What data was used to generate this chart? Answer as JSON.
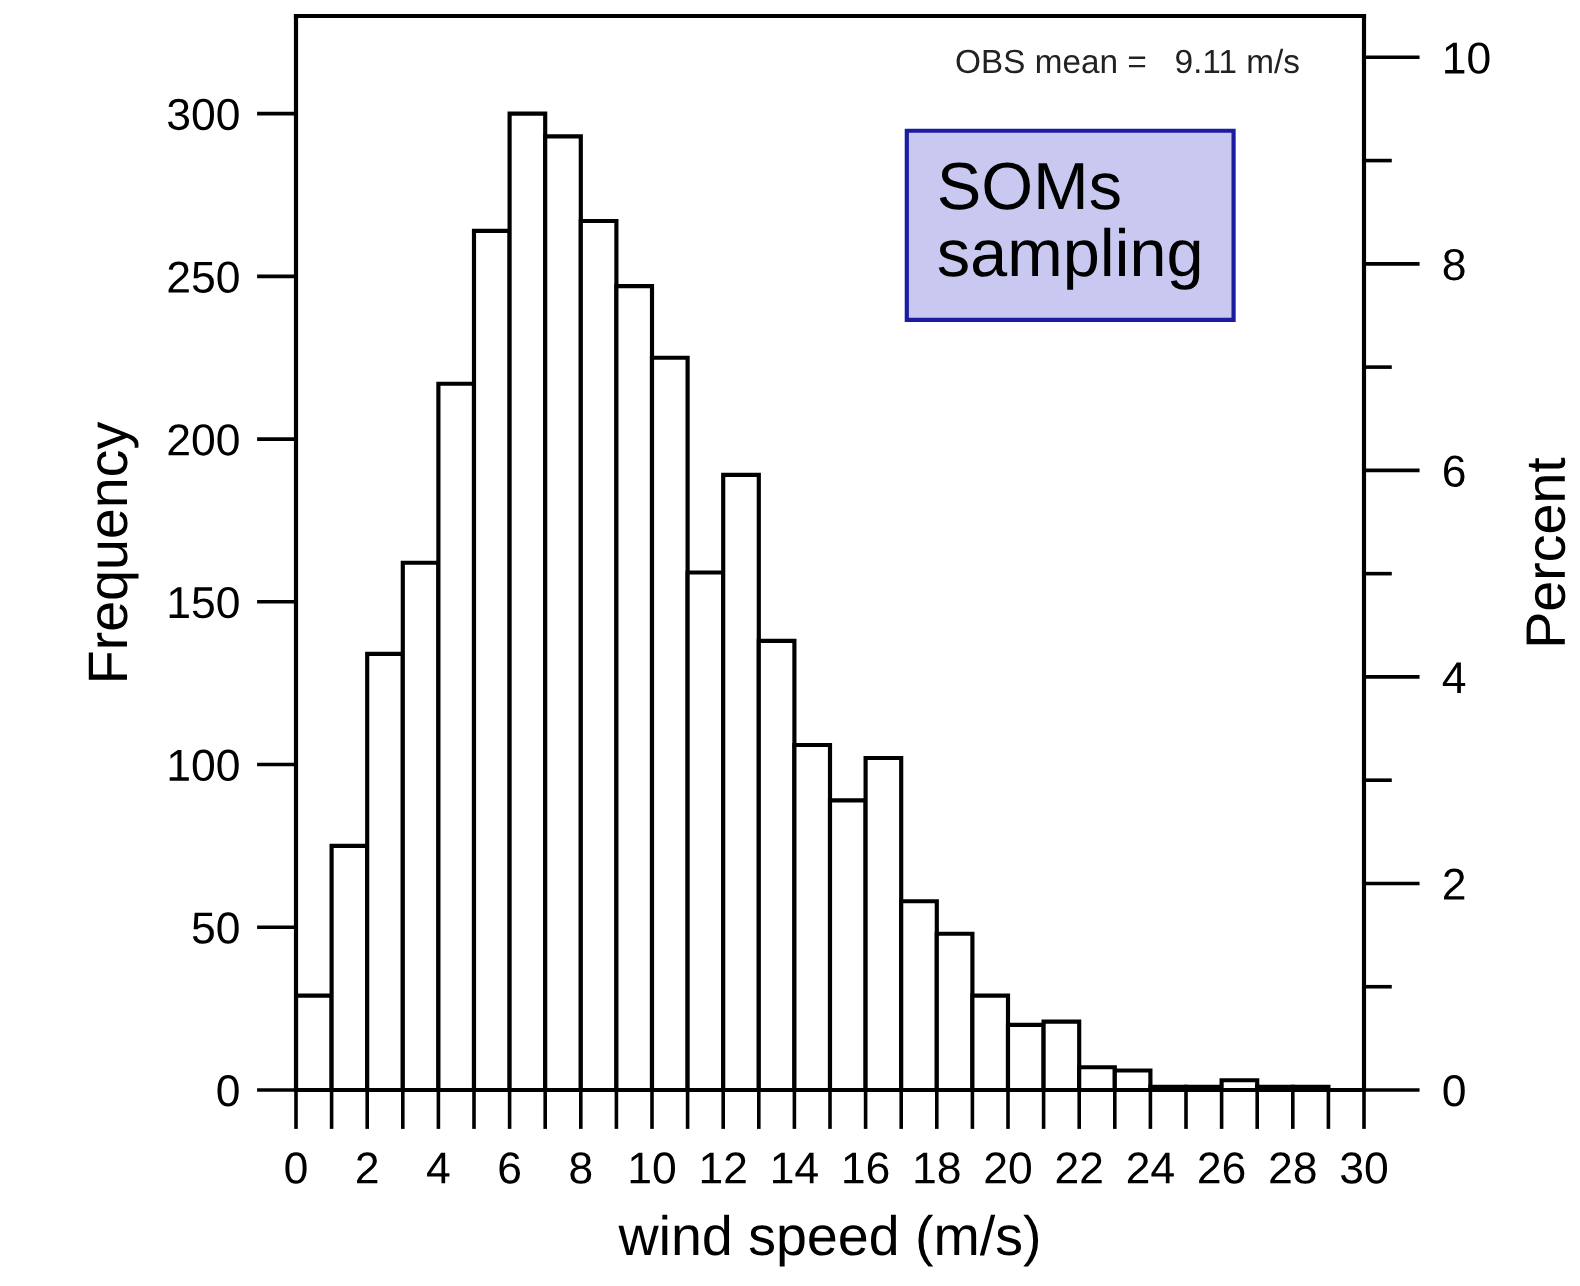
{
  "chart_data": {
    "type": "histogram",
    "xlabel": "wind speed (m/s)",
    "ylabel": "Frequency",
    "y2label": "Percent",
    "bins": [
      0,
      1,
      2,
      3,
      4,
      5,
      6,
      7,
      8,
      9,
      10,
      11,
      12,
      13,
      14,
      15,
      16,
      17,
      18,
      19,
      20,
      21,
      22,
      23,
      24,
      25,
      26,
      27,
      28,
      29
    ],
    "values": [
      29,
      75,
      134,
      162,
      217,
      264,
      300,
      293,
      267,
      247,
      225,
      159,
      189,
      138,
      106,
      89,
      102,
      58,
      48,
      29,
      20,
      21,
      7,
      6,
      1,
      1,
      3,
      1,
      1
    ],
    "color": "#ffffff",
    "xlim": [
      0,
      30
    ],
    "xticks": [
      0,
      2,
      4,
      6,
      8,
      10,
      12,
      14,
      16,
      18,
      20,
      22,
      24,
      26,
      28,
      30
    ],
    "ylim": [
      0,
      330
    ],
    "yticks": [
      0,
      50,
      100,
      150,
      200,
      250,
      300
    ],
    "y2lim": [
      0,
      10.4
    ],
    "y2ticks": [
      0,
      2,
      4,
      6,
      8,
      10
    ],
    "grid": false,
    "legend": false,
    "annotations": [
      "OBS mean =   9.11 m/s",
      "SOMs\nsampling"
    ]
  }
}
